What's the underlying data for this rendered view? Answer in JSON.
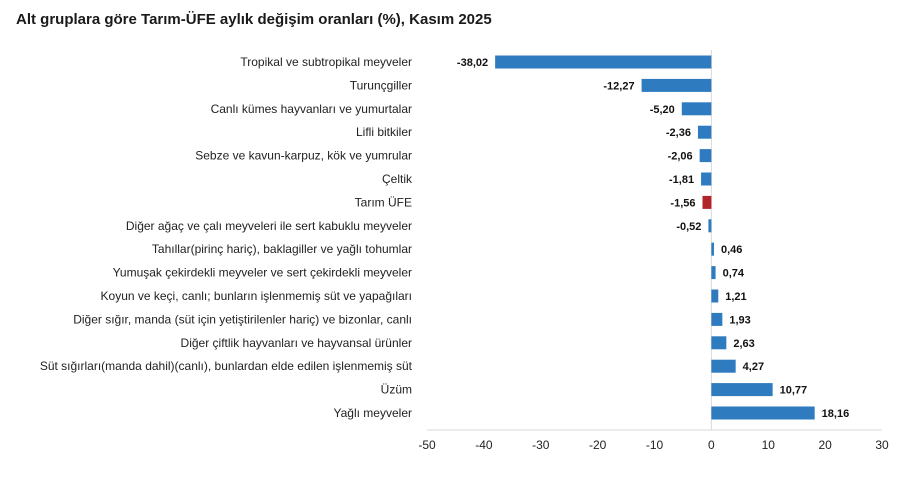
{
  "chart_data": {
    "type": "bar",
    "orientation": "horizontal",
    "title": "Alt gruplara göre Tarım-ÜFE aylık değişim oranları (%), Kasım 2025",
    "categories": [
      "Tropikal ve subtropikal meyveler",
      "Turunçgiller",
      "Canlı kümes hayvanları ve yumurtalar",
      "Lifli bitkiler",
      "Sebze ve kavun-karpuz, kök ve yumrular",
      "Çeltik",
      "Tarım ÜFE",
      "Diğer ağaç ve çalı meyveleri ile sert kabuklu meyveler",
      "Tahıllar(pirinç hariç), baklagiller ve yağlı tohumlar",
      "Yumuşak çekirdekli meyveler ve sert çekirdekli meyveler",
      "Koyun ve keçi, canlı; bunların işlenmemiş süt ve yapağıları",
      "Diğer sığır, manda (süt için yetiştirilenler hariç) ve bizonlar, canlı",
      "Diğer çiftlik hayvanları ve hayvansal ürünler",
      "Süt sığırları(manda dahil)(canlı), bunlardan elde edilen işlenmemiş süt",
      "Üzüm",
      "Yağlı meyveler"
    ],
    "values": [
      -38.02,
      -12.27,
      -5.2,
      -2.36,
      -2.06,
      -1.81,
      -1.56,
      -0.52,
      0.46,
      0.74,
      1.21,
      1.93,
      2.63,
      4.27,
      10.77,
      18.16
    ],
    "value_labels": [
      "-38,02",
      "-12,27",
      "-5,20",
      "-2,36",
      "-2,06",
      "-1,81",
      "-1,56",
      "-0,52",
      "0,46",
      "0,74",
      "1,21",
      "1,93",
      "2,63",
      "4,27",
      "10,77",
      "18,16"
    ],
    "highlight_category": "Tarım ÜFE",
    "xlim": [
      -50,
      30
    ],
    "xticks": [
      -50,
      -40,
      -30,
      -20,
      -10,
      0,
      10,
      20,
      30
    ],
    "xtick_labels": [
      "-50",
      "-40",
      "-30",
      "-20",
      "-10",
      "0",
      "10",
      "20",
      "30"
    ],
    "grid": false,
    "legend": "none",
    "colors": {
      "bar": "#2e7bbf",
      "highlight": "#b2242a",
      "axis": "#d9d9d9",
      "text": "#222222"
    }
  }
}
